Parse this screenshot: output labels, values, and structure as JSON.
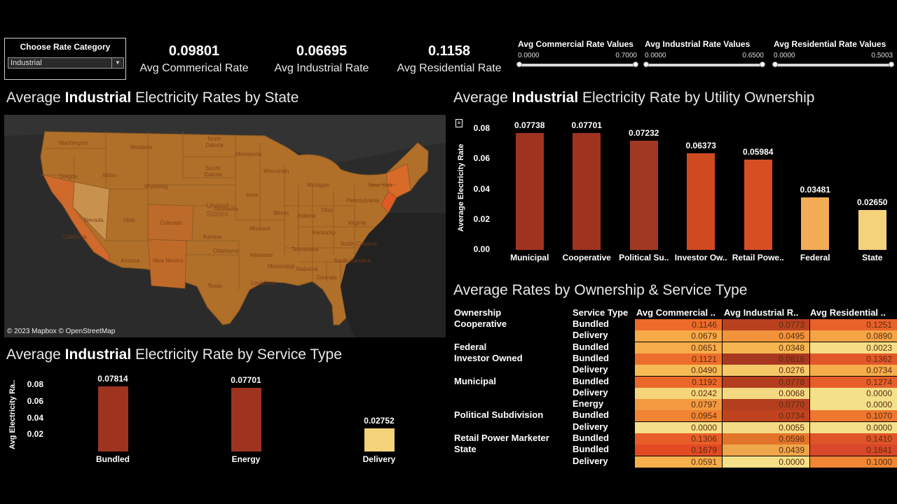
{
  "filter": {
    "label": "Choose Rate Category",
    "selected": "Industrial"
  },
  "kpis": [
    {
      "value": "0.09801",
      "label": "Avg Commerical Rate"
    },
    {
      "value": "0.06695",
      "label": "Avg Industrial Rate"
    },
    {
      "value": "0.1158",
      "label": "Avg Residential Rate"
    }
  ],
  "sliders": [
    {
      "title": "Avg Commercial Rate Values",
      "min": "0.0000",
      "max": "0.7000"
    },
    {
      "title": "Avg Industrial Rate Values",
      "min": "0.0000",
      "max": "0.6500"
    },
    {
      "title": "Avg Residential Rate Values",
      "min": "0.0000",
      "max": "0.5003"
    }
  ],
  "map_section": {
    "title_pre": "Average ",
    "title_bold": "Industrial",
    "title_post": " Electricity Rates by State",
    "credit": "© 2023 Mapbox © OpenStreetMap",
    "country": "United States",
    "states": [
      "Washington",
      "Oregon",
      "Idaho",
      "Montana",
      "North Dakota",
      "South Dakota",
      "Minnesota",
      "Wisconsin",
      "Michigan",
      "Wyoming",
      "Nevada",
      "Utah",
      "Colorado",
      "Nebraska",
      "Iowa",
      "Illinois",
      "Indiana",
      "Ohio",
      "Pennsylvania",
      "New York",
      "Kansas",
      "Missouri",
      "California",
      "Arizona",
      "New Mexico",
      "Oklahoma",
      "Arkansas",
      "Tennessee",
      "Kentucky",
      "Virginia",
      "North Carolina",
      "South Carolina",
      "Texas",
      "Louisiana",
      "Mississippi",
      "Alabama",
      "Georgia"
    ]
  },
  "ownership_chart": {
    "title_pre": "Average ",
    "title_bold": "Industrial",
    "title_post": " Electricity Rate by Utility Ownership",
    "ylabel": "Average Electricity Rate",
    "yticks": [
      "0.08",
      "0.06",
      "0.04",
      "0.02",
      "0.00"
    ],
    "chart_data": {
      "type": "bar",
      "categories": [
        "Municipal",
        "Cooperative",
        "Political Su..",
        "Investor Ow..",
        "Retail Powe..",
        "Federal",
        "State"
      ],
      "values": [
        0.07738,
        0.07701,
        0.07232,
        0.06373,
        0.05984,
        0.03481,
        0.0265
      ],
      "labels": [
        "0.07738",
        "0.07701",
        "0.07232",
        "0.06373",
        "0.05984",
        "0.03481",
        "0.02650"
      ],
      "colors": [
        "#9e3320",
        "#9e3320",
        "#a13822",
        "#cf4a1f",
        "#d64e22",
        "#f2ac55",
        "#f4d27a"
      ],
      "ylim": [
        0,
        0.08
      ]
    }
  },
  "service_chart": {
    "title_pre": "Average ",
    "title_bold": "Industrial",
    "title_post": " Electricity Rate by Service Type",
    "ylabel": "Avg Electricity Ra..",
    "yticks": [
      "0.08",
      "0.06",
      "0.04",
      "0.02"
    ],
    "chart_data": {
      "type": "bar",
      "categories": [
        "Bundled",
        "Energy",
        "Delivery"
      ],
      "values": [
        0.07814,
        0.07701,
        0.02752
      ],
      "labels": [
        "0.07814",
        "0.07701",
        "0.02752"
      ],
      "colors": [
        "#9e3320",
        "#9e3320",
        "#f4d27a"
      ],
      "ylim": [
        0,
        0.08
      ]
    }
  },
  "table": {
    "title": "Average Rates by Ownership & Service Type",
    "headers": [
      "Ownership",
      "Service Type",
      "Avg Commercial ..",
      "Avg Industrial R..",
      "Avg Residential .."
    ],
    "owners": [
      {
        "name": "Cooperative",
        "row": 0
      },
      {
        "name": "Federal",
        "row": 2
      },
      {
        "name": "Investor Owned",
        "row": 3
      },
      {
        "name": "Municipal",
        "row": 5
      },
      {
        "name": "Political Subdivision",
        "row": 8
      },
      {
        "name": "Retail Power Marketer",
        "row": 10
      },
      {
        "name": "State",
        "row": 11
      }
    ],
    "rows": [
      {
        "service": "Bundled",
        "values": [
          "0.1146",
          "0.0773",
          "0.1251"
        ],
        "colors": [
          "#ec6b2a",
          "#b8401f",
          "#e8622a"
        ]
      },
      {
        "service": "Delivery",
        "values": [
          "0.0679",
          "0.0495",
          "0.0890"
        ],
        "colors": [
          "#f7aa48",
          "#f2923b",
          "#f5a446"
        ]
      },
      {
        "service": "Bundled",
        "values": [
          "0.0651",
          "0.0348",
          "0.0023"
        ],
        "colors": [
          "#f7ad4a",
          "#f5b650",
          "#f5de86"
        ]
      },
      {
        "service": "Bundled",
        "values": [
          "0.1121",
          "0.0816",
          "0.1362"
        ],
        "colors": [
          "#ed6e2b",
          "#a8371f",
          "#e2572a"
        ]
      },
      {
        "service": "Delivery",
        "values": [
          "0.0490",
          "0.0276",
          "0.0734"
        ],
        "colors": [
          "#f6bb55",
          "#f7c868",
          "#f5ac4a"
        ]
      },
      {
        "service": "Bundled",
        "values": [
          "0.1192",
          "0.0778",
          "0.1274"
        ],
        "colors": [
          "#ec682a",
          "#b43e1f",
          "#e65f2a"
        ]
      },
      {
        "service": "Delivery",
        "values": [
          "0.0242",
          "0.0068",
          "0.0000"
        ],
        "colors": [
          "#f5d57a",
          "#f4d982",
          "#f5e08a"
        ]
      },
      {
        "service": "Energy",
        "values": [
          "0.0797",
          "0.0770",
          "0.0000"
        ],
        "colors": [
          "#f39a40",
          "#b43f1f",
          "#f5e08a"
        ]
      },
      {
        "service": "Bundled",
        "values": [
          "0.0954",
          "0.0734",
          "0.1070"
        ],
        "colors": [
          "#f08432",
          "#c0431f",
          "#ee762f"
        ]
      },
      {
        "service": "Delivery",
        "values": [
          "0.0000",
          "0.0055",
          "0.0000"
        ],
        "colors": [
          "#f5df88",
          "#f4da84",
          "#f5e08a"
        ]
      },
      {
        "service": "Bundled",
        "values": [
          "0.1306",
          "0.0598",
          "0.1410"
        ],
        "colors": [
          "#e95e28",
          "#e2742a",
          "#df5428"
        ]
      },
      {
        "service": "Bundled",
        "values": [
          "0.1679",
          "0.0439",
          "0.1841"
        ],
        "colors": [
          "#e24a24",
          "#eea74a",
          "#d9482a"
        ]
      },
      {
        "service": "Delivery",
        "values": [
          "0.0591",
          "0.0000",
          "0.1000"
        ],
        "colors": [
          "#f7b04c",
          "#f5df88",
          "#f08634"
        ]
      }
    ]
  },
  "colors": {
    "background": "#000000",
    "map_base": "#2b2b2b",
    "state_fill": "#b0702a"
  }
}
